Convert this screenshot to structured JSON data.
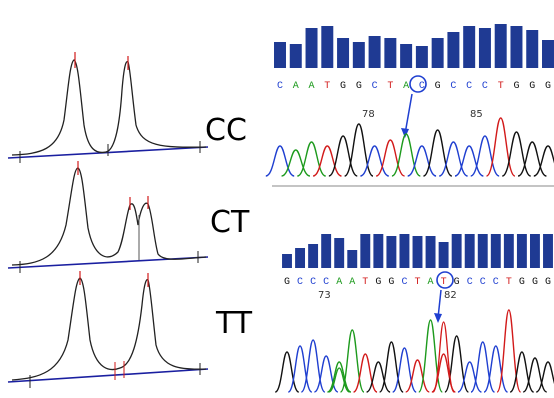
{
  "genotypes": [
    "CC",
    "CT",
    "TT"
  ],
  "seq_top": {
    "bases": "CAATGGCTACGCCCTGGG",
    "tick_labels": [
      "78",
      "85"
    ]
  },
  "seq_bottom": {
    "bases": "GCCCAATGGCTATGCCCTGGG",
    "tick_labels": [
      "73",
      "82"
    ]
  },
  "colors": {
    "A": "#1d9a1d",
    "C": "#1f3fd0",
    "G": "#111111",
    "T": "#d21a1a",
    "quality_bar": "#1f3a93",
    "baseline": "#1a1fa0",
    "marker": "#1f3fd0"
  }
}
